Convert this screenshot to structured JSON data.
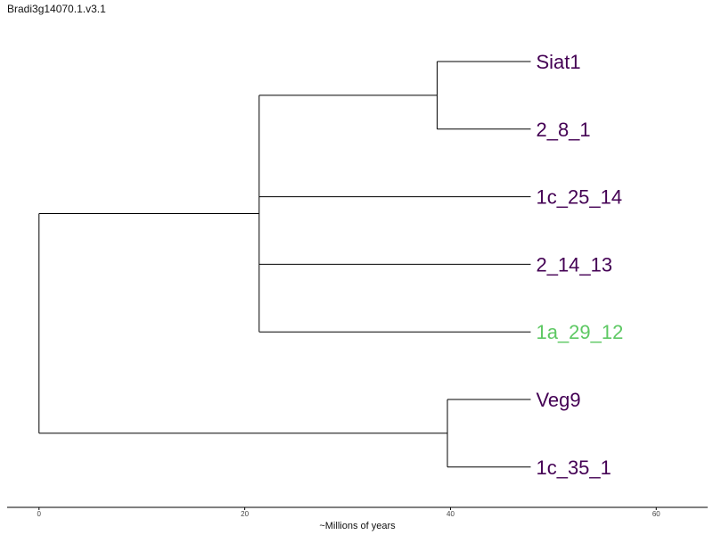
{
  "chart_data": {
    "type": "dendrogram",
    "title": "Bradi3g14070.1.v3.1",
    "xlabel": "~Millions of years",
    "xlim": [
      -3.1,
      65.0
    ],
    "xticks": [
      0,
      20,
      40,
      60
    ],
    "tree": {
      "age": 0,
      "children": [
        {
          "age": 21.4,
          "children": [
            {
              "age": 38.7,
              "children": [
                {
                  "label": "Siat1",
                  "age": 47.8
                },
                {
                  "label": "2_8_1",
                  "age": 47.8
                }
              ]
            },
            {
              "label": "1c_25_14",
              "age": 47.8
            },
            {
              "label": "2_14_13",
              "age": 47.8
            },
            {
              "label": "1a_29_12",
              "age": 47.8
            }
          ]
        },
        {
          "age": 39.7,
          "children": [
            {
              "label": "Veg9",
              "age": 47.8
            },
            {
              "label": "1c_35_1",
              "age": 47.8
            }
          ]
        }
      ]
    },
    "tips": [
      {
        "label": "Siat1",
        "color": "#440154"
      },
      {
        "label": "2_8_1",
        "color": "#440154"
      },
      {
        "label": "1c_25_14",
        "color": "#440154"
      },
      {
        "label": "2_14_13",
        "color": "#440154"
      },
      {
        "label": "1a_29_12",
        "color": "#5DC863"
      },
      {
        "label": "Veg9",
        "color": "#440154"
      },
      {
        "label": "1c_35_1",
        "color": "#440154"
      }
    ],
    "branch_color": "#000000"
  }
}
